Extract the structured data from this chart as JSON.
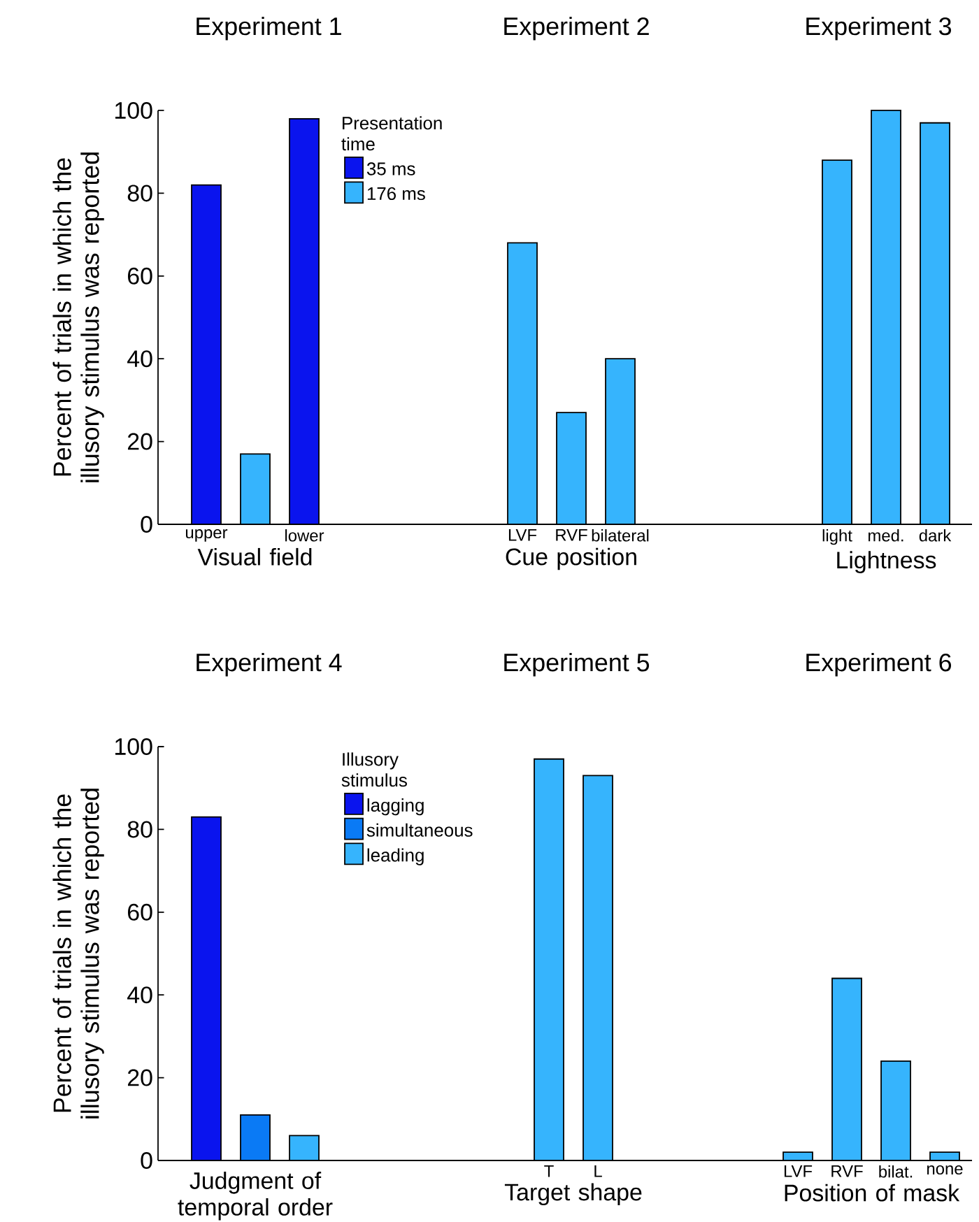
{
  "chart_data": [
    {
      "type": "bar",
      "title": "Experiment 1",
      "xlabel": "Visual field",
      "ylabel": "Percent of trials in which the illusory stimulus was reported",
      "legend_title": "Presentation time",
      "legend": "top right",
      "categories": [
        "upper",
        null,
        "lower"
      ],
      "ylim": [
        0,
        100
      ],
      "yticks": [
        0,
        20,
        40,
        60,
        80,
        100
      ],
      "series": [
        {
          "name": "35 ms",
          "color": "#0a14ee",
          "values": [
            82,
            null,
            98
          ]
        },
        {
          "name": "176 ms",
          "color": "#36b4fd",
          "values": [
            null,
            17,
            null
          ]
        }
      ]
    },
    {
      "type": "bar",
      "title": "Experiment 2",
      "xlabel": "Cue position",
      "categories": [
        "LVF",
        "RVF",
        "bilateral"
      ],
      "ylim": [
        0,
        100
      ],
      "tick_labels": "x",
      "series": [
        {
          "color": "#36b4fd",
          "values": [
            68,
            27,
            40
          ]
        }
      ]
    },
    {
      "type": "bar",
      "title": "Experiment 3",
      "xlabel": "Lightness",
      "categories": [
        "light",
        "med.",
        "dark"
      ],
      "ylim": [
        0,
        100
      ],
      "tick_labels": "x",
      "series": [
        {
          "color": "#36b4fd",
          "values": [
            88,
            100,
            97
          ]
        }
      ]
    },
    {
      "type": "bar",
      "title": "Experiment 4",
      "xlabel": "Judgment of temporal order",
      "ylabel": "Percent of trials in which the illusory stimulus was reported",
      "legend_title": "Illusory stimulus",
      "legend": "top right",
      "categories": [
        null,
        null,
        null
      ],
      "ylim": [
        0,
        100
      ],
      "yticks": [
        0,
        20,
        40,
        60,
        80,
        100
      ],
      "series": [
        {
          "name": "lagging",
          "color": "#0a14ee",
          "values": [
            83,
            null,
            null
          ]
        },
        {
          "name": "simultaneous",
          "color": "#0a7af5",
          "values": [
            null,
            11,
            null
          ]
        },
        {
          "name": "leading",
          "color": "#36b4fd",
          "values": [
            null,
            null,
            6
          ]
        }
      ]
    },
    {
      "type": "bar",
      "title": "Experiment 5",
      "xlabel": "Target shape",
      "categories": [
        "T",
        "L"
      ],
      "ylim": [
        0,
        100
      ],
      "tick_labels": "x",
      "series": [
        {
          "color": "#36b4fd",
          "values": [
            97,
            93
          ]
        }
      ]
    },
    {
      "type": "bar",
      "title": "Experiment 6",
      "xlabel": "Position of mask",
      "categories": [
        "LVF",
        "RVF",
        "bilat.",
        "none"
      ],
      "ylim": [
        0,
        100
      ],
      "tick_labels": "x",
      "series": [
        {
          "color": "#36b4fd",
          "values": [
            2,
            44,
            24,
            2
          ]
        }
      ]
    }
  ]
}
